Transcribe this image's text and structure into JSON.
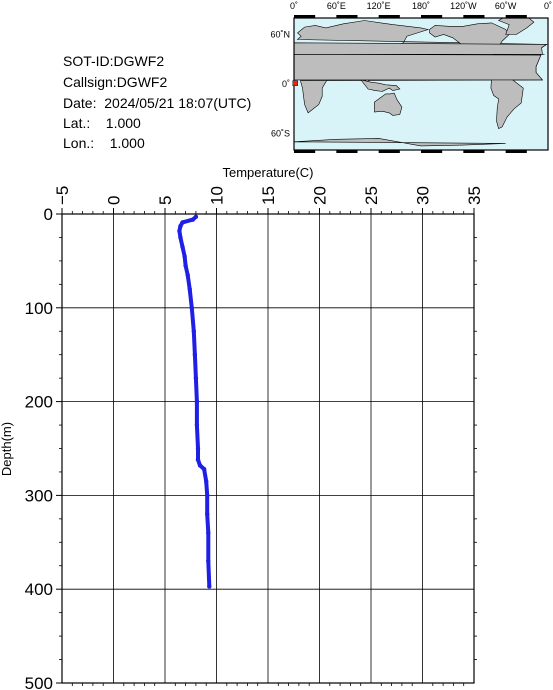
{
  "header": {
    "sot_id": "SOT-ID:DGWF2",
    "callsign": "Callsign:DGWF2",
    "date": "Date:  2024/05/21 18:07(UTC)",
    "lat": "Lat.:    1.000",
    "lon": "Lon.:    1.000"
  },
  "map": {
    "top_labels": [
      "0˚",
      "60˚E",
      "120˚E",
      "180˚",
      "120˚W",
      "60˚W",
      "0˚"
    ],
    "left_labels": [
      "60˚N",
      "0˚",
      "60˚S"
    ],
    "ocean_color": "#d9f4f8",
    "land_color": "#bdbdbd",
    "marker_color": "#e8231e",
    "marker_lon": 1.0,
    "marker_lat": 1.0
  },
  "chart_data": {
    "type": "line",
    "title": "",
    "xlabel": "Temperature(C)",
    "ylabel": "Depth(m)",
    "xlim": [
      -5,
      35
    ],
    "ylim": [
      500,
      0
    ],
    "x_ticks": [
      -5,
      0,
      5,
      10,
      15,
      20,
      25,
      30,
      35
    ],
    "x_tick_labels": [
      "−5",
      "0",
      "5",
      "10",
      "15",
      "20",
      "25",
      "30",
      "35"
    ],
    "y_ticks": [
      0,
      100,
      200,
      300,
      400,
      500
    ],
    "y_tick_labels": [
      "0",
      "100",
      "200",
      "300",
      "400",
      "500"
    ],
    "grid": true,
    "line_color": "#1f1fe6",
    "series": [
      {
        "temperature": [
          8.0,
          7.7,
          6.7,
          6.5,
          6.4,
          6.5,
          6.7,
          6.9,
          7.0,
          7.2,
          7.4,
          7.6,
          7.8,
          7.9,
          8.0,
          8.1,
          8.1,
          8.2,
          8.2,
          8.4,
          8.8,
          9.0,
          9.1,
          9.1,
          9.2,
          9.2,
          9.3
        ],
        "depth": [
          3,
          6,
          9,
          13,
          18,
          25,
          35,
          45,
          55,
          65,
          80,
          100,
          125,
          150,
          175,
          200,
          225,
          250,
          262,
          268,
          272,
          285,
          300,
          320,
          340,
          370,
          397
        ]
      }
    ]
  }
}
